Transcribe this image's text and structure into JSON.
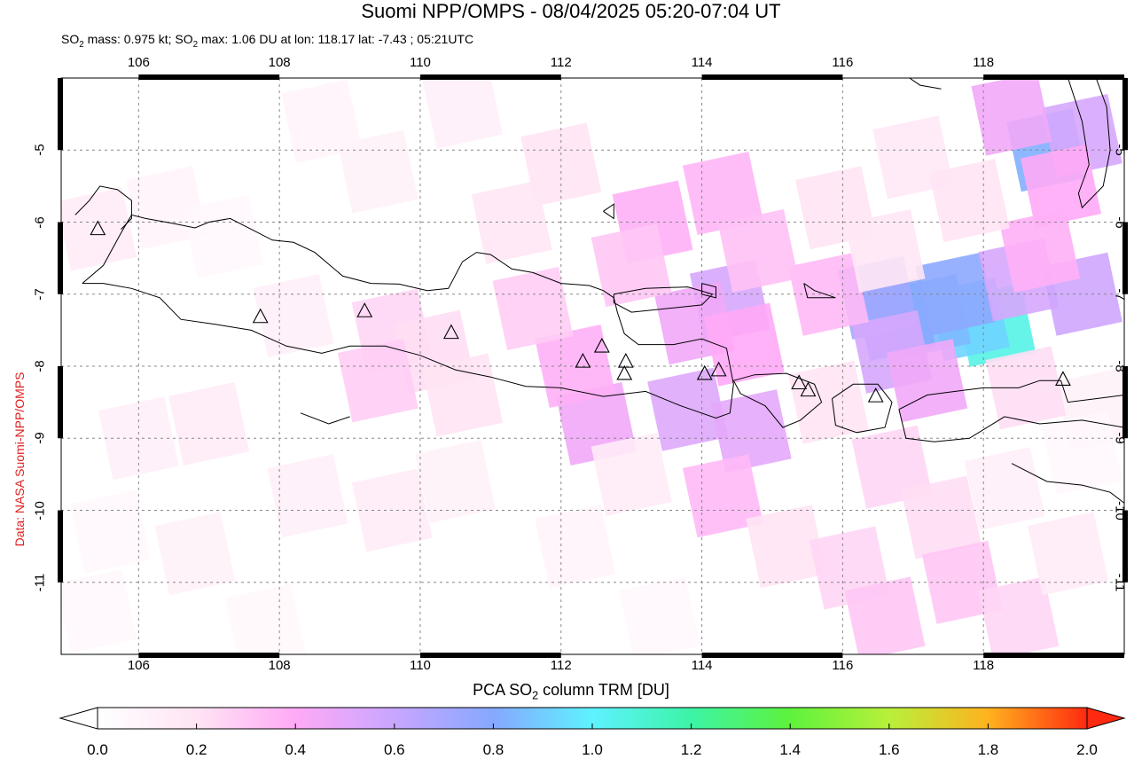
{
  "header": {
    "title": "Suomi NPP/OMPS - 08/04/2025 05:20-07:04 UT",
    "subtitle_mass_label": "SO",
    "subtitle_mass_sub": "2",
    "subtitle_mass_text": " mass: 0.975 kt; SO",
    "subtitle_max_sub": "2",
    "subtitle_max_text": " max: 1.06 DU at lon: 118.17 lat: -7.43 ; 05:21UTC"
  },
  "credit": "Data: NASA Suomi-NPP/OMPS",
  "map": {
    "lon_range": [
      104.9,
      120.0
    ],
    "lat_range": [
      -12.0,
      -4.0
    ],
    "x_ticks": [
      "106",
      "108",
      "110",
      "112",
      "114",
      "116",
      "118"
    ],
    "y_ticks": [
      "-5",
      "-6",
      "-7",
      "-8",
      "-9",
      "-10",
      "-11"
    ]
  },
  "colorbar": {
    "title_prefix": "PCA SO",
    "title_sub": "2",
    "title_suffix": " column TRM [DU]",
    "ticks": [
      "0.0",
      "0.2",
      "0.4",
      "0.6",
      "0.8",
      "1.0",
      "1.2",
      "1.4",
      "1.6",
      "1.8",
      "2.0"
    ],
    "range": [
      0.0,
      2.0
    ]
  },
  "colors": {
    "credit": "#e02020",
    "grid": "#888888",
    "coast": "#000000"
  },
  "volcanoes": [
    {
      "lon": 105.42,
      "lat": -6.1
    },
    {
      "lon": 107.73,
      "lat": -7.32
    },
    {
      "lon": 109.21,
      "lat": -7.24
    },
    {
      "lon": 110.44,
      "lat": -7.54
    },
    {
      "lon": 112.31,
      "lat": -7.94
    },
    {
      "lon": 112.58,
      "lat": -7.73
    },
    {
      "lon": 112.92,
      "lat": -7.94
    },
    {
      "lon": 112.9,
      "lat": -8.11
    },
    {
      "lon": 114.04,
      "lat": -8.11
    },
    {
      "lon": 114.24,
      "lat": -8.06
    },
    {
      "lon": 115.38,
      "lat": -8.24
    },
    {
      "lon": 115.51,
      "lat": -8.34
    },
    {
      "lon": 116.47,
      "lat": -8.42
    },
    {
      "lon": 119.13,
      "lat": -8.19
    }
  ],
  "so2_pixels": [
    {
      "lon": 118.17,
      "lat": -7.43,
      "v": 1.06
    },
    {
      "lon": 117.8,
      "lat": -7.35,
      "v": 0.92
    },
    {
      "lon": 117.25,
      "lat": -7.3,
      "v": 0.85
    },
    {
      "lon": 116.75,
      "lat": -7.35,
      "v": 0.8
    },
    {
      "lon": 117.6,
      "lat": -7.0,
      "v": 0.78
    },
    {
      "lon": 116.5,
      "lat": -7.05,
      "v": 0.72
    },
    {
      "lon": 118.9,
      "lat": -5.0,
      "v": 0.82
    },
    {
      "lon": 119.4,
      "lat": -4.8,
      "v": 0.55
    },
    {
      "lon": 118.4,
      "lat": -4.5,
      "v": 0.45
    },
    {
      "lon": 119.1,
      "lat": -5.5,
      "v": 0.4
    },
    {
      "lon": 118.5,
      "lat": -6.8,
      "v": 0.55
    },
    {
      "lon": 119.4,
      "lat": -7.0,
      "v": 0.58
    },
    {
      "lon": 118.8,
      "lat": -6.4,
      "v": 0.38
    },
    {
      "lon": 116.7,
      "lat": -7.8,
      "v": 0.55
    },
    {
      "lon": 117.2,
      "lat": -8.2,
      "v": 0.45
    },
    {
      "lon": 115.8,
      "lat": -7.0,
      "v": 0.35
    },
    {
      "lon": 114.4,
      "lat": -7.1,
      "v": 0.55
    },
    {
      "lon": 113.9,
      "lat": -7.4,
      "v": 0.45
    },
    {
      "lon": 114.6,
      "lat": -7.7,
      "v": 0.4
    },
    {
      "lon": 113.8,
      "lat": -8.6,
      "v": 0.52
    },
    {
      "lon": 114.7,
      "lat": -8.9,
      "v": 0.5
    },
    {
      "lon": 112.5,
      "lat": -8.8,
      "v": 0.45
    },
    {
      "lon": 112.2,
      "lat": -8.0,
      "v": 0.38
    },
    {
      "lon": 113.3,
      "lat": -6.0,
      "v": 0.38
    },
    {
      "lon": 114.3,
      "lat": -5.6,
      "v": 0.36
    },
    {
      "lon": 114.8,
      "lat": -6.4,
      "v": 0.32
    },
    {
      "lon": 113.0,
      "lat": -6.6,
      "v": 0.3
    },
    {
      "lon": 111.6,
      "lat": -7.2,
      "v": 0.28
    },
    {
      "lon": 112.0,
      "lat": -5.2,
      "v": 0.2
    },
    {
      "lon": 111.3,
      "lat": -6.0,
      "v": 0.18
    },
    {
      "lon": 110.6,
      "lat": -4.4,
      "v": 0.12
    },
    {
      "lon": 109.4,
      "lat": -5.3,
      "v": 0.1
    },
    {
      "lon": 109.6,
      "lat": -7.5,
      "v": 0.25
    },
    {
      "lon": 110.2,
      "lat": -7.8,
      "v": 0.22
    },
    {
      "lon": 109.4,
      "lat": -8.2,
      "v": 0.28
    },
    {
      "lon": 110.6,
      "lat": -8.4,
      "v": 0.2
    },
    {
      "lon": 108.2,
      "lat": -7.3,
      "v": 0.12
    },
    {
      "lon": 107.0,
      "lat": -8.8,
      "v": 0.15
    },
    {
      "lon": 106.0,
      "lat": -9.0,
      "v": 0.12
    },
    {
      "lon": 105.4,
      "lat": -6.1,
      "v": 0.14
    },
    {
      "lon": 106.4,
      "lat": -5.8,
      "v": 0.08
    },
    {
      "lon": 108.6,
      "lat": -4.6,
      "v": 0.08
    },
    {
      "lon": 107.2,
      "lat": -6.2,
      "v": 0.06
    },
    {
      "lon": 108.4,
      "lat": -9.8,
      "v": 0.12
    },
    {
      "lon": 109.6,
      "lat": -10.0,
      "v": 0.14
    },
    {
      "lon": 110.5,
      "lat": -9.6,
      "v": 0.1
    },
    {
      "lon": 106.8,
      "lat": -10.6,
      "v": 0.1
    },
    {
      "lon": 105.6,
      "lat": -10.3,
      "v": 0.06
    },
    {
      "lon": 105.4,
      "lat": -11.4,
      "v": 0.06
    },
    {
      "lon": 107.8,
      "lat": -11.6,
      "v": 0.05
    },
    {
      "lon": 113.0,
      "lat": -9.5,
      "v": 0.15
    },
    {
      "lon": 114.3,
      "lat": -9.8,
      "v": 0.35
    },
    {
      "lon": 115.2,
      "lat": -10.5,
      "v": 0.2
    },
    {
      "lon": 116.1,
      "lat": -10.8,
      "v": 0.25
    },
    {
      "lon": 116.7,
      "lat": -9.4,
      "v": 0.25
    },
    {
      "lon": 117.4,
      "lat": -10.1,
      "v": 0.22
    },
    {
      "lon": 118.3,
      "lat": -9.7,
      "v": 0.12
    },
    {
      "lon": 117.7,
      "lat": -11.0,
      "v": 0.3
    },
    {
      "lon": 118.5,
      "lat": -11.5,
      "v": 0.25
    },
    {
      "lon": 116.6,
      "lat": -11.5,
      "v": 0.3
    },
    {
      "lon": 119.2,
      "lat": -10.6,
      "v": 0.15
    },
    {
      "lon": 115.9,
      "lat": -5.8,
      "v": 0.2
    },
    {
      "lon": 116.6,
      "lat": -6.4,
      "v": 0.18
    },
    {
      "lon": 117.0,
      "lat": -5.1,
      "v": 0.16
    },
    {
      "lon": 117.8,
      "lat": -5.7,
      "v": 0.2
    },
    {
      "lon": 119.6,
      "lat": -8.6,
      "v": 0.1
    },
    {
      "lon": 118.6,
      "lat": -8.3,
      "v": 0.22
    },
    {
      "lon": 115.8,
      "lat": -8.5,
      "v": 0.2
    },
    {
      "lon": 119.4,
      "lat": -9.2,
      "v": 0.06
    },
    {
      "lon": 113.4,
      "lat": -11.5,
      "v": 0.06
    },
    {
      "lon": 112.2,
      "lat": -10.5,
      "v": 0.08
    }
  ],
  "coastlines": [
    [
      [
        105.2,
        -6.85
      ],
      [
        105.5,
        -6.6
      ],
      [
        105.75,
        -6.15
      ],
      [
        105.9,
        -5.9
      ],
      [
        106.1,
        -5.95
      ],
      [
        106.5,
        -6.02
      ],
      [
        106.8,
        -6.08
      ],
      [
        107.0,
        -6.0
      ],
      [
        107.3,
        -5.95
      ],
      [
        107.6,
        -6.1
      ],
      [
        107.9,
        -6.25
      ],
      [
        108.2,
        -6.28
      ],
      [
        108.5,
        -6.42
      ],
      [
        108.9,
        -6.75
      ],
      [
        109.3,
        -6.85
      ],
      [
        109.7,
        -6.86
      ],
      [
        110.1,
        -6.95
      ],
      [
        110.4,
        -6.92
      ],
      [
        110.6,
        -6.55
      ],
      [
        110.8,
        -6.42
      ],
      [
        111.0,
        -6.45
      ],
      [
        111.3,
        -6.65
      ],
      [
        111.6,
        -6.7
      ],
      [
        112.0,
        -6.85
      ],
      [
        112.4,
        -6.88
      ],
      [
        112.6,
        -6.95
      ],
      [
        112.75,
        -7.05
      ],
      [
        112.8,
        -7.25
      ],
      [
        112.9,
        -7.55
      ],
      [
        113.1,
        -7.7
      ],
      [
        113.6,
        -7.7
      ],
      [
        114.0,
        -7.62
      ],
      [
        114.35,
        -7.75
      ],
      [
        114.45,
        -8.25
      ],
      [
        114.4,
        -8.65
      ],
      [
        114.2,
        -8.72
      ],
      [
        113.7,
        -8.55
      ],
      [
        113.2,
        -8.35
      ],
      [
        112.6,
        -8.42
      ],
      [
        112.0,
        -8.3
      ],
      [
        111.5,
        -8.28
      ],
      [
        111.0,
        -8.15
      ],
      [
        110.5,
        -8.05
      ],
      [
        110.0,
        -7.85
      ],
      [
        109.5,
        -7.72
      ],
      [
        109.0,
        -7.72
      ],
      [
        108.6,
        -7.82
      ],
      [
        108.1,
        -7.72
      ],
      [
        107.6,
        -7.5
      ],
      [
        107.1,
        -7.42
      ],
      [
        106.6,
        -7.35
      ],
      [
        106.3,
        -7.05
      ],
      [
        105.9,
        -6.92
      ],
      [
        105.5,
        -6.85
      ],
      [
        105.2,
        -6.85
      ]
    ],
    [
      [
        112.75,
        -7.0
      ],
      [
        113.2,
        -6.92
      ],
      [
        113.8,
        -6.9
      ],
      [
        114.15,
        -7.0
      ],
      [
        114.0,
        -7.15
      ],
      [
        113.5,
        -7.2
      ],
      [
        113.0,
        -7.25
      ],
      [
        112.75,
        -7.12
      ],
      [
        112.75,
        -7.0
      ]
    ],
    [
      [
        114.45,
        -8.2
      ],
      [
        114.75,
        -8.12
      ],
      [
        115.2,
        -8.1
      ],
      [
        115.6,
        -8.25
      ],
      [
        115.7,
        -8.5
      ],
      [
        115.4,
        -8.75
      ],
      [
        115.15,
        -8.85
      ],
      [
        114.9,
        -8.55
      ],
      [
        114.55,
        -8.38
      ],
      [
        114.45,
        -8.2
      ]
    ],
    [
      [
        115.85,
        -8.45
      ],
      [
        116.15,
        -8.25
      ],
      [
        116.5,
        -8.25
      ],
      [
        116.7,
        -8.5
      ],
      [
        116.6,
        -8.85
      ],
      [
        116.2,
        -8.92
      ],
      [
        115.9,
        -8.82
      ],
      [
        115.85,
        -8.45
      ]
    ],
    [
      [
        116.8,
        -8.6
      ],
      [
        117.2,
        -8.4
      ],
      [
        117.6,
        -8.35
      ],
      [
        118.0,
        -8.3
      ],
      [
        118.5,
        -8.3
      ],
      [
        118.8,
        -8.2
      ],
      [
        119.1,
        -8.2
      ],
      [
        119.2,
        -8.5
      ],
      [
        119.6,
        -8.45
      ],
      [
        120.0,
        -8.4
      ],
      [
        120.0,
        -8.85
      ],
      [
        119.4,
        -8.75
      ],
      [
        118.8,
        -8.8
      ],
      [
        118.3,
        -8.7
      ],
      [
        117.8,
        -9.0
      ],
      [
        117.3,
        -9.05
      ],
      [
        116.9,
        -9.0
      ],
      [
        116.8,
        -8.6
      ]
    ],
    [
      [
        105.1,
        -5.9
      ],
      [
        105.3,
        -5.7
      ],
      [
        105.45,
        -5.5
      ],
      [
        105.7,
        -5.55
      ],
      [
        105.9,
        -5.7
      ],
      [
        105.9,
        -5.95
      ],
      [
        105.75,
        -6.1
      ]
    ],
    [
      [
        119.2,
        -4.0
      ],
      [
        119.4,
        -4.6
      ],
      [
        119.5,
        -5.2
      ],
      [
        119.35,
        -5.6
      ],
      [
        119.4,
        -5.8
      ],
      [
        119.7,
        -5.5
      ],
      [
        119.8,
        -5.0
      ],
      [
        119.75,
        -4.4
      ],
      [
        119.6,
        -4.0
      ]
    ],
    [
      [
        117.4,
        -4.15
      ],
      [
        117.1,
        -4.1
      ],
      [
        116.95,
        -4.0
      ]
    ],
    [
      [
        118.4,
        -9.35
      ],
      [
        118.9,
        -9.6
      ],
      [
        119.4,
        -9.65
      ],
      [
        119.8,
        -9.75
      ],
      [
        120.0,
        -9.9
      ]
    ],
    [
      [
        112.6,
        -5.85
      ],
      [
        112.75,
        -5.75
      ],
      [
        112.75,
        -5.95
      ],
      [
        112.6,
        -5.85
      ]
    ],
    [
      [
        115.45,
        -6.85
      ],
      [
        115.6,
        -6.95
      ],
      [
        115.9,
        -7.05
      ],
      [
        115.5,
        -7.05
      ],
      [
        115.45,
        -6.85
      ]
    ],
    [
      [
        114.0,
        -6.85
      ],
      [
        114.2,
        -6.9
      ],
      [
        114.2,
        -7.05
      ],
      [
        114.0,
        -7.0
      ],
      [
        114.0,
        -6.85
      ]
    ],
    [
      [
        108.3,
        -8.65
      ],
      [
        108.7,
        -8.8
      ],
      [
        109.0,
        -8.7
      ]
    ]
  ]
}
